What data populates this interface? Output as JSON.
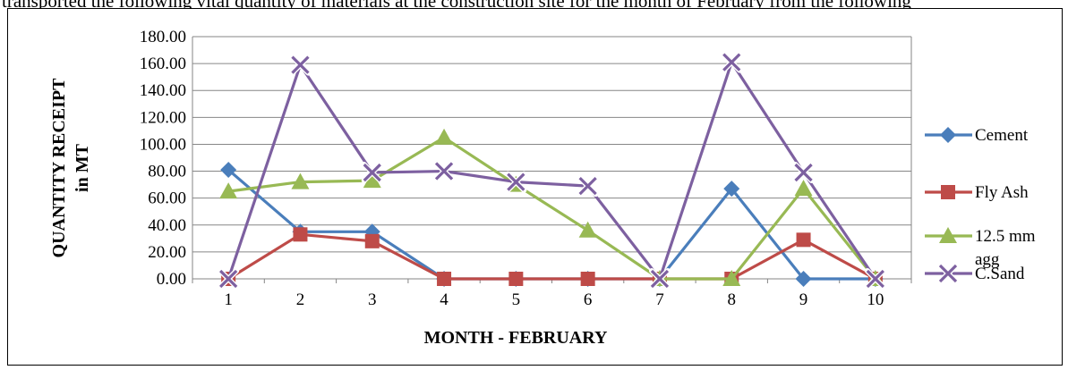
{
  "top_text": "transported the following vital quantity of materials at the construction site for the month of February from the following",
  "colors": {
    "cement": "#4a7ebb",
    "fly_ash": "#be4b48",
    "agg": "#98b954",
    "sand": "#7d60a0",
    "grid": "#868686"
  },
  "chart_data": {
    "type": "line",
    "title": "",
    "xlabel": "MONTH - FEBRUARY",
    "ylabel_line1": "QUANTITY RECEIPT",
    "ylabel_line2": "in MT",
    "ylim": [
      0,
      180
    ],
    "ytick_step": 20,
    "y_ticks": [
      "0.00",
      "20.00",
      "40.00",
      "60.00",
      "80.00",
      "100.00",
      "120.00",
      "140.00",
      "160.00",
      "180.00"
    ],
    "categories": [
      "1",
      "2",
      "3",
      "4",
      "5",
      "6",
      "7",
      "8",
      "9",
      "10"
    ],
    "grid": "horizontal",
    "legend_position": "right",
    "series": [
      {
        "name": "Cement",
        "marker": "diamond",
        "color_key": "cement",
        "values": [
          81,
          35,
          35,
          0,
          0,
          0,
          0,
          67,
          0,
          0
        ]
      },
      {
        "name": "Fly Ash",
        "marker": "square",
        "color_key": "fly_ash",
        "values": [
          0,
          33,
          28,
          0,
          0,
          0,
          0,
          0,
          29,
          0
        ]
      },
      {
        "name": "12.5 mm agg",
        "name_lines": [
          "12.5 mm",
          "agg"
        ],
        "marker": "triangle",
        "color_key": "agg",
        "values": [
          65,
          72,
          73,
          105,
          70,
          36,
          0,
          0,
          67,
          0
        ]
      },
      {
        "name": "C.Sand",
        "marker": "x",
        "color_key": "sand",
        "values": [
          0,
          159,
          79,
          80,
          72,
          69,
          0,
          161,
          79,
          0
        ]
      }
    ]
  }
}
